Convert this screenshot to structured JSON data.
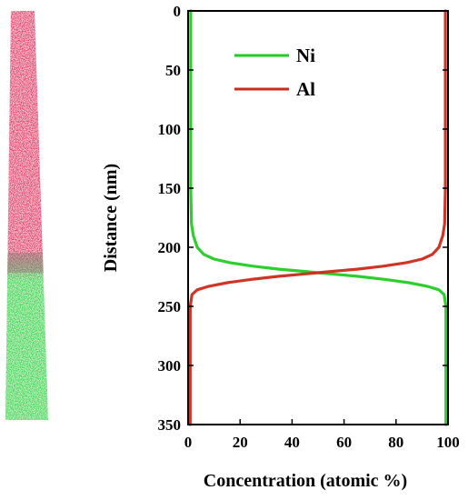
{
  "colors": {
    "ni": "#22cc22",
    "al": "#cc2a1a",
    "ni_atoms": "#2fd94a",
    "al_atoms": "#e8336f",
    "axis": "#000000"
  },
  "chart_data": {
    "type": "line",
    "xlabel": "Concentration (atomic %)",
    "ylabel": "Distance (nm)",
    "xlim": [
      0,
      100
    ],
    "ylim": [
      0,
      350
    ],
    "y_inverted": true,
    "x_ticks": [
      0,
      20,
      40,
      60,
      80,
      100
    ],
    "y_ticks": [
      0,
      50,
      100,
      150,
      200,
      250,
      300,
      350
    ],
    "grid": false,
    "legend_position": "top-left",
    "series": [
      {
        "name": "Ni",
        "color": "#22cc22",
        "points": [
          [
            1,
            0
          ],
          [
            1,
            50
          ],
          [
            1,
            100
          ],
          [
            1,
            150
          ],
          [
            1.3,
            180
          ],
          [
            2,
            190
          ],
          [
            3.5,
            200
          ],
          [
            6,
            206
          ],
          [
            10,
            210
          ],
          [
            16,
            213
          ],
          [
            25,
            216
          ],
          [
            35,
            218.5
          ],
          [
            45,
            220.5
          ],
          [
            50,
            221.5
          ],
          [
            55,
            222.5
          ],
          [
            65,
            224.5
          ],
          [
            75,
            227
          ],
          [
            85,
            230
          ],
          [
            92,
            233
          ],
          [
            96.5,
            236
          ],
          [
            98.5,
            240
          ],
          [
            99.2,
            250
          ],
          [
            99.2,
            300
          ],
          [
            99.2,
            350
          ]
        ]
      },
      {
        "name": "Al",
        "color": "#cc2a1a",
        "points": [
          [
            99,
            0
          ],
          [
            99,
            50
          ],
          [
            99,
            100
          ],
          [
            99,
            150
          ],
          [
            98.7,
            180
          ],
          [
            98,
            190
          ],
          [
            96.5,
            200
          ],
          [
            94,
            206
          ],
          [
            90,
            210
          ],
          [
            84,
            213
          ],
          [
            75,
            216
          ],
          [
            65,
            218.5
          ],
          [
            55,
            220.5
          ],
          [
            50,
            221.5
          ],
          [
            45,
            222.5
          ],
          [
            35,
            224.5
          ],
          [
            25,
            227
          ],
          [
            15,
            230
          ],
          [
            8,
            233
          ],
          [
            3.5,
            236
          ],
          [
            1.5,
            240
          ],
          [
            0.8,
            250
          ],
          [
            0.8,
            300
          ],
          [
            0.8,
            350
          ]
        ]
      }
    ]
  }
}
